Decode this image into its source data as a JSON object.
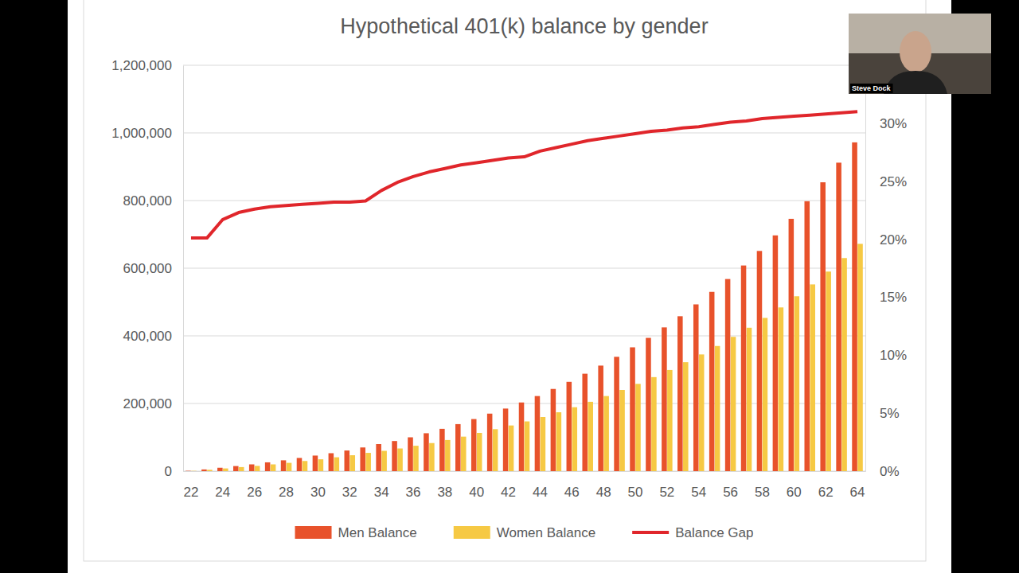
{
  "chart_data": {
    "type": "bar",
    "title": "Hypothetical 401(k) balance by gender",
    "categories": [
      22,
      null,
      24,
      null,
      26,
      null,
      28,
      null,
      30,
      null,
      32,
      null,
      34,
      null,
      36,
      null,
      38,
      null,
      40,
      null,
      42,
      null,
      44,
      null,
      46,
      null,
      48,
      null,
      50,
      null,
      52,
      null,
      54,
      null,
      56,
      null,
      58,
      null,
      60,
      null,
      62,
      null,
      64
    ],
    "series": [
      {
        "name": "Men Balance",
        "type": "bar",
        "color": "#e8522b",
        "values": [
          1000,
          5000,
          10000,
          15000,
          20000,
          26000,
          32000,
          39000,
          46000,
          53000,
          61000,
          70000,
          80000,
          89000,
          100000,
          112000,
          125000,
          139000,
          154000,
          170000,
          185000,
          203000,
          222000,
          243000,
          264000,
          288000,
          312000,
          338000,
          366000,
          394000,
          425000,
          458000,
          493000,
          530000,
          568000,
          608000,
          651000,
          697000,
          746000,
          798000,
          854000,
          912000,
          972000
        ]
      },
      {
        "name": "Women Balance",
        "type": "bar",
        "color": "#f6c944",
        "values": [
          800,
          4000,
          8000,
          12000,
          15500,
          20000,
          24500,
          30000,
          35000,
          41000,
          47000,
          54000,
          60000,
          67000,
          75000,
          83000,
          92000,
          102000,
          113000,
          124000,
          135000,
          147000,
          160000,
          174000,
          189000,
          205000,
          222000,
          240000,
          258000,
          278000,
          299000,
          322000,
          345000,
          370000,
          397000,
          424000,
          453000,
          484000,
          517000,
          552000,
          590000,
          630000,
          672000
        ]
      },
      {
        "name": "Balance Gap",
        "type": "line",
        "axis": "y2",
        "color": "#e0262b",
        "values": [
          20.1,
          20.1,
          21.7,
          22.3,
          22.6,
          22.8,
          22.9,
          23.0,
          23.1,
          23.2,
          23.2,
          23.3,
          24.2,
          24.9,
          25.4,
          25.8,
          26.1,
          26.4,
          26.6,
          26.8,
          27.0,
          27.1,
          27.6,
          27.9,
          28.2,
          28.5,
          28.7,
          28.9,
          29.1,
          29.3,
          29.4,
          29.6,
          29.7,
          29.9,
          30.1,
          30.2,
          30.4,
          30.5,
          30.6,
          30.7,
          30.8,
          30.9,
          31.0
        ]
      }
    ],
    "ylim": [
      0,
      1200000
    ],
    "yticks": [
      0,
      {
        "value": 200000,
        "label": "200,000"
      },
      {
        "value": 400000,
        "label": "400,000"
      },
      {
        "value": 600000,
        "label": "600,000"
      },
      {
        "value": 800000,
        "label": "800,000"
      },
      {
        "value": 1000000,
        "label": "1,000,000"
      },
      {
        "value": 1200000,
        "label": "1,200,000"
      }
    ],
    "y2lim": [
      0,
      35
    ],
    "y2ticks": [
      {
        "value": 0,
        "label": "0%"
      },
      {
        "value": 5,
        "label": "5%"
      },
      {
        "value": 10,
        "label": "10%"
      },
      {
        "value": 15,
        "label": "15%"
      },
      {
        "value": 20,
        "label": "20%"
      },
      {
        "value": 25,
        "label": "25%"
      },
      {
        "value": 30,
        "label": "30%"
      }
    ],
    "grid": true,
    "legend": "bottom"
  },
  "overlay": {
    "name": "Steve Dock"
  }
}
